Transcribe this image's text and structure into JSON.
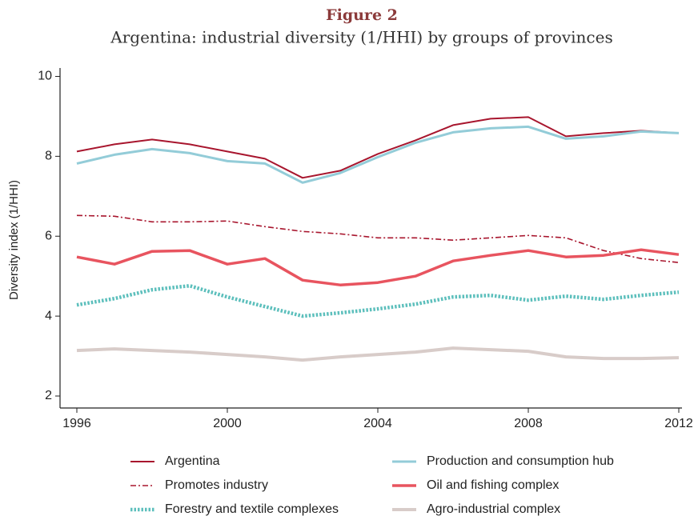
{
  "chart_data": {
    "type": "line",
    "title": "Figure 2",
    "subtitle": "Argentina: industrial diversity (1/HHI) by groups of provinces",
    "y_label": "Diversity index (1/HHI)",
    "x": [
      1996,
      1997,
      1998,
      1999,
      2000,
      2001,
      2002,
      2003,
      2004,
      2005,
      2006,
      2007,
      2008,
      2009,
      2010,
      2011,
      2012
    ],
    "xlim": [
      1996,
      2012
    ],
    "xticks": [
      1996,
      2000,
      2004,
      2008,
      2012
    ],
    "ylim": [
      1.7,
      10.15
    ],
    "yticks": [
      2,
      4,
      6,
      8,
      10
    ],
    "grid": false,
    "legend": "bottom",
    "series": [
      {
        "name": "Argentina",
        "color": "#a8162e",
        "style": "solid",
        "width": 2,
        "values": [
          8.12,
          8.3,
          8.42,
          8.3,
          8.12,
          7.94,
          7.46,
          7.64,
          8.06,
          8.4,
          8.78,
          8.94,
          8.98,
          8.5,
          8.58,
          8.64,
          8.58
        ]
      },
      {
        "name": "Production and consumption hub",
        "color": "#93ccd8",
        "style": "solid",
        "width": 3,
        "values": [
          7.82,
          8.04,
          8.18,
          8.08,
          7.88,
          7.82,
          7.34,
          7.58,
          7.98,
          8.34,
          8.6,
          8.7,
          8.74,
          8.44,
          8.5,
          8.62,
          8.58
        ]
      },
      {
        "name": "Promotes industry",
        "color": "#a8162e",
        "style": "dashdot",
        "width": 1.6,
        "values": [
          6.52,
          6.5,
          6.36,
          6.36,
          6.38,
          6.24,
          6.12,
          6.06,
          5.96,
          5.96,
          5.9,
          5.96,
          6.02,
          5.96,
          5.64,
          5.44,
          5.34
        ]
      },
      {
        "name": "Oil and fishing complex",
        "color": "#e8545f",
        "style": "solid",
        "width": 3.5,
        "values": [
          5.48,
          5.3,
          5.62,
          5.64,
          5.3,
          5.44,
          4.9,
          4.78,
          4.84,
          5.0,
          5.38,
          5.52,
          5.64,
          5.48,
          5.52,
          5.66,
          5.54
        ]
      },
      {
        "name": "Forestry and textile complexes",
        "color": "#5cbfbc",
        "style": "dotted",
        "width": 4.5,
        "values": [
          4.28,
          4.44,
          4.66,
          4.76,
          4.48,
          4.24,
          4.0,
          4.08,
          4.18,
          4.3,
          4.48,
          4.52,
          4.4,
          4.5,
          4.42,
          4.52,
          4.6
        ]
      },
      {
        "name": "Agro-industrial complex",
        "color": "#d8ccc9",
        "style": "solid",
        "width": 4,
        "values": [
          3.14,
          3.18,
          3.14,
          3.1,
          3.04,
          2.98,
          2.9,
          2.98,
          3.04,
          3.1,
          3.2,
          3.16,
          3.12,
          2.98,
          2.94,
          2.94,
          2.96
        ]
      }
    ]
  }
}
